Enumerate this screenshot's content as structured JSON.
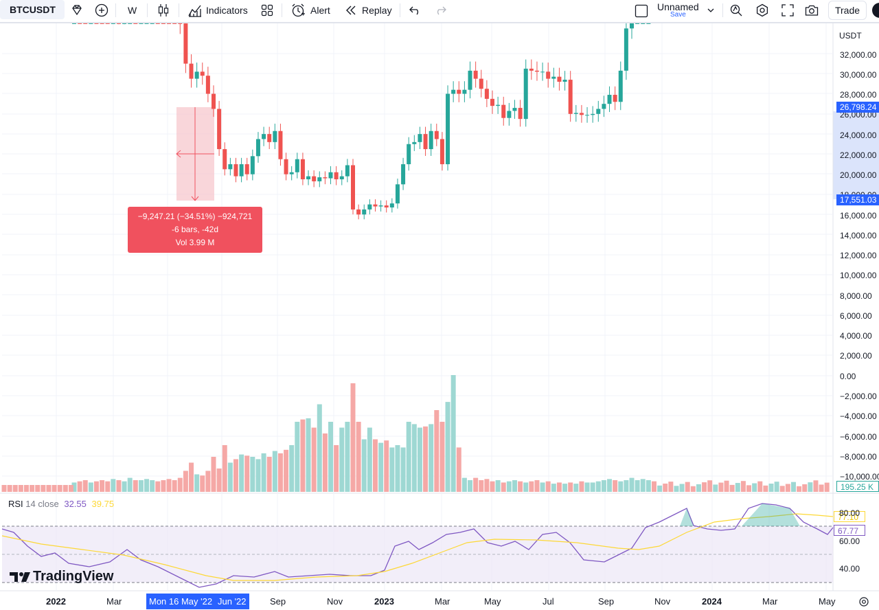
{
  "toolbar": {
    "symbol": "BTCUSDT",
    "interval": "W",
    "indicators": "Indicators",
    "alert": "Alert",
    "replay": "Replay",
    "layout_name": "Unnamed",
    "save": "Save",
    "trade": "Trade"
  },
  "price_scale": {
    "currency": "USDT",
    "labels": [
      "32,000.00",
      "30,000.00",
      "28,000.00",
      "26,000.00",
      "24,000.00",
      "22,000.00",
      "20,000.00",
      "18,000.00",
      "16,000.00",
      "14,000.00",
      "12,000.00",
      "10,000.00",
      "8,000.00",
      "6,000.00",
      "4,000.00",
      "2,000.00",
      "0.00",
      "−2,000.00",
      "−4,000.00",
      "−6,000.00",
      "−8,000.00",
      "−10,000.00"
    ],
    "current_price": "26,798.24",
    "measure_low_price": "17,551.03",
    "current_price_color": "#2962ff",
    "volume_tag": "195.25 K",
    "volume_tag_color": "#26a69a"
  },
  "measure": {
    "line1": "−9,247.21 (−34.51%) −924,721",
    "line2": "-6 bars, -42d",
    "line3": "Vol 3.99 M",
    "color": "#f0515e"
  },
  "rsi": {
    "label": "RSI",
    "params": "14 close",
    "value": "32.55",
    "ma_value": "39.75",
    "scale": [
      "80.00",
      "60.00",
      "40.00"
    ],
    "tag_ma": "77.10",
    "tag_rsi": "67.77",
    "rsi_color": "#7e57c2",
    "ma_color": "#fdd835"
  },
  "time_axis": [
    "2022",
    "Mar",
    "Mon 16 May '22",
    "Jun '22",
    "Sep",
    "Nov",
    "2023",
    "Mar",
    "May",
    "Jul",
    "Sep",
    "Nov",
    "2024",
    "Mar",
    "May"
  ],
  "watermark": "TradingView",
  "colors": {
    "up": "#26a69a",
    "down": "#ef5350",
    "vol_up": "#9ed8d3",
    "vol_down": "#f5a8a6"
  }
}
